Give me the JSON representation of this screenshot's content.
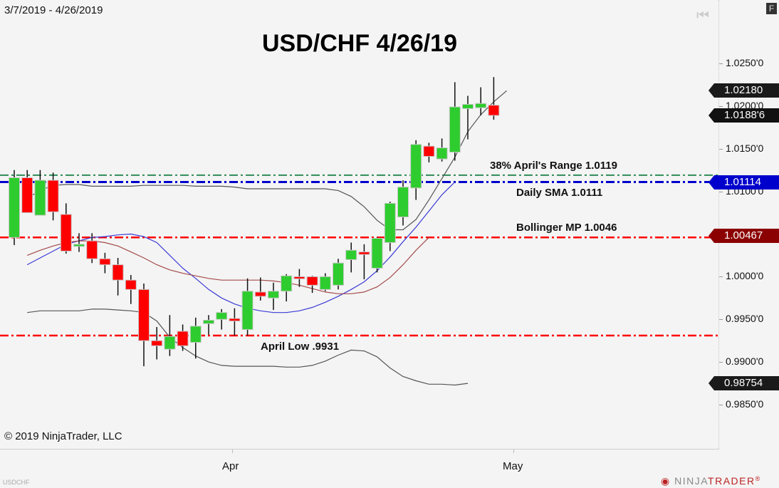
{
  "header": {
    "date_range": "3/7/2019 - 4/26/2019",
    "title": "USD/CHF 4/26/19",
    "f_button": "F"
  },
  "footer": {
    "copyright": "© 2019 NinjaTrader, LLC",
    "symbol": "USDCHF",
    "logo_prefix": "NINJA",
    "logo_brand": "TRADER",
    "logo_mark": "®"
  },
  "colors": {
    "up": "#2ecc2e",
    "down": "#ff0000",
    "fib_line": "#2e8b57",
    "sma_line": "#0000cc",
    "bollinger_mid_line": "#ff0000",
    "april_low_line": "#ff0000",
    "bollinger_band": "#555555",
    "fast_ma": "#3b3bd6",
    "slow_ma": "#a54b4b",
    "tag_dark": "#1a1a1a",
    "tag_blue": "#0000cc",
    "tag_red": "#8b0000"
  },
  "chart_data": {
    "type": "candlestick",
    "title": "USD/CHF 4/26/19",
    "xlabel": "",
    "ylabel": "",
    "x_tick_labels": [
      "Apr",
      "May"
    ],
    "y_tick_labels": [
      "1.0250'0",
      "1.0200'0",
      "1.0150'0",
      "1.0100'0",
      "1.0000'0",
      "0.9950'0",
      "0.9900'0",
      "0.9850'0"
    ],
    "ylim": [
      0.9825,
      1.0275
    ],
    "grid": false,
    "candles": [
      {
        "o": 1.0046,
        "h": 1.0125,
        "l": 1.0037,
        "c": 1.0116
      },
      {
        "o": 1.0116,
        "h": 1.0125,
        "l": 1.0088,
        "c": 1.0075
      },
      {
        "o": 1.0072,
        "h": 1.0125,
        "l": 1.0072,
        "c": 1.0113
      },
      {
        "o": 1.0113,
        "h": 1.0122,
        "l": 1.0066,
        "c": 1.0076
      },
      {
        "o": 1.0073,
        "h": 1.0086,
        "l": 1.0027,
        "c": 1.003
      },
      {
        "o": 1.0036,
        "h": 1.0051,
        "l": 1.0029,
        "c": 1.0038
      },
      {
        "o": 1.0042,
        "h": 1.0051,
        "l": 1.0016,
        "c": 1.0021
      },
      {
        "o": 1.0021,
        "h": 1.0028,
        "l": 1.0004,
        "c": 1.0014
      },
      {
        "o": 1.0014,
        "h": 1.0022,
        "l": 0.9978,
        "c": 0.9996
      },
      {
        "o": 0.9996,
        "h": 1.0002,
        "l": 0.9968,
        "c": 0.9985
      },
      {
        "o": 0.9985,
        "h": 0.9992,
        "l": 0.9895,
        "c": 0.9925
      },
      {
        "o": 0.9925,
        "h": 0.9941,
        "l": 0.9903,
        "c": 0.9919
      },
      {
        "o": 0.9915,
        "h": 0.9955,
        "l": 0.9907,
        "c": 0.993
      },
      {
        "o": 0.9936,
        "h": 0.9944,
        "l": 0.9913,
        "c": 0.9919
      },
      {
        "o": 0.9923,
        "h": 0.9952,
        "l": 0.9904,
        "c": 0.9942
      },
      {
        "o": 0.9945,
        "h": 0.9955,
        "l": 0.9932,
        "c": 0.9949
      },
      {
        "o": 0.995,
        "h": 0.9962,
        "l": 0.9938,
        "c": 0.9958
      },
      {
        "o": 0.9951,
        "h": 0.9963,
        "l": 0.9931,
        "c": 0.9948
      },
      {
        "o": 0.9938,
        "h": 0.9998,
        "l": 0.9931,
        "c": 0.9983
      },
      {
        "o": 0.9982,
        "h": 0.9999,
        "l": 0.9972,
        "c": 0.9977
      },
      {
        "o": 0.9975,
        "h": 0.9993,
        "l": 0.9961,
        "c": 0.9983
      },
      {
        "o": 0.9983,
        "h": 1.0003,
        "l": 0.9971,
        "c": 1.0001
      },
      {
        "o": 1.0,
        "h": 1.0009,
        "l": 0.9988,
        "c": 0.9998
      },
      {
        "o": 1.0,
        "h": 1.0001,
        "l": 0.9981,
        "c": 0.999
      },
      {
        "o": 0.9985,
        "h": 1.0004,
        "l": 0.9983,
        "c": 1.0
      },
      {
        "o": 0.999,
        "h": 1.0021,
        "l": 0.9985,
        "c": 1.0016
      },
      {
        "o": 1.002,
        "h": 1.004,
        "l": 1.0005,
        "c": 1.0031
      },
      {
        "o": 1.0029,
        "h": 1.0038,
        "l": 0.9997,
        "c": 1.0026
      },
      {
        "o": 1.001,
        "h": 1.0046,
        "l": 1.0005,
        "c": 1.0045
      },
      {
        "o": 1.004,
        "h": 1.0088,
        "l": 1.003,
        "c": 1.0086
      },
      {
        "o": 1.007,
        "h": 1.0113,
        "l": 1.006,
        "c": 1.0105
      },
      {
        "o": 1.0104,
        "h": 1.016,
        "l": 1.009,
        "c": 1.0155
      },
      {
        "o": 1.0153,
        "h": 1.0157,
        "l": 1.0134,
        "c": 1.0141
      },
      {
        "o": 1.0138,
        "h": 1.0162,
        "l": 1.0135,
        "c": 1.0151
      },
      {
        "o": 1.0146,
        "h": 1.0228,
        "l": 1.0136,
        "c": 1.0199
      },
      {
        "o": 1.0197,
        "h": 1.0212,
        "l": 1.0161,
        "c": 1.0202
      },
      {
        "o": 1.0198,
        "h": 1.0222,
        "l": 1.0189,
        "c": 1.0203
      },
      {
        "o": 1.0201,
        "h": 1.0234,
        "l": 1.0184,
        "c": 1.0189
      }
    ],
    "horizontal_levels": [
      {
        "label": "38% April's Range 1.0119",
        "value": 1.0119,
        "color": "#2e8b57",
        "style": "dash-dot"
      },
      {
        "label": "Daily SMA 1.0111",
        "value": 1.0111,
        "color": "#0000cc",
        "style": "dash-dot"
      },
      {
        "label": "Bollinger MP 1.0046",
        "value": 1.0046,
        "color": "#ff0000",
        "style": "dash-dot"
      },
      {
        "label": "April Low .9931",
        "value": 0.9931,
        "color": "#ff0000",
        "style": "dash-dot"
      }
    ],
    "price_tags": [
      {
        "value": "1.02180",
        "color": "#1a1a1a"
      },
      {
        "value": "1.0188'6",
        "color": "#111111"
      },
      {
        "value": "1.01114",
        "color": "#0000cc"
      },
      {
        "value": "1.00467",
        "color": "#8b0000"
      },
      {
        "value": "0.98754",
        "color": "#1a1a1a"
      }
    ],
    "indicators": {
      "bollinger_upper": [
        1.0092,
        1.0101,
        1.0107,
        1.0108,
        1.0108,
        1.0106,
        1.0106,
        1.0106,
        1.0106,
        1.0107,
        1.0107,
        1.0107,
        1.0107,
        1.0106,
        1.0106,
        1.0106,
        1.0105,
        1.0103,
        1.0103,
        1.0103,
        1.0103,
        1.0103,
        1.0103,
        1.0103,
        1.0101,
        1.0094,
        1.0082,
        1.0066,
        1.0055,
        1.0055,
        1.0067,
        1.009,
        1.0115,
        1.014,
        1.017,
        1.019,
        1.0205,
        1.0218
      ],
      "bollinger_lower": [
        0.9958,
        0.996,
        0.996,
        0.996,
        0.996,
        0.9962,
        0.9962,
        0.9961,
        0.996,
        0.9958,
        0.9948,
        0.9929,
        0.9917,
        0.9907,
        0.99,
        0.9896,
        0.9895,
        0.9895,
        0.9895,
        0.9895,
        0.9894,
        0.9894,
        0.9896,
        0.9901,
        0.9908,
        0.9914,
        0.9913,
        0.9906,
        0.9893,
        0.9883,
        0.9878,
        0.9874,
        0.9874,
        0.9873,
        0.9875
      ],
      "fast_ma": [
        1.0014,
        1.0022,
        1.003,
        1.0038,
        1.0042,
        1.0046,
        1.0047,
        1.0049,
        1.005,
        1.0047,
        1.004,
        1.0025,
        1.001,
        0.9998,
        0.9985,
        0.9975,
        0.9968,
        0.9963,
        0.996,
        0.9958,
        0.9958,
        0.996,
        0.9964,
        0.997,
        0.9977,
        0.9985,
        0.9994,
        1.0007,
        1.0023,
        1.0041,
        1.0058,
        1.0077,
        1.0096,
        1.0111
      ],
      "slow_ma": [
        1.0025,
        1.0031,
        1.0036,
        1.004,
        1.0042,
        1.0042,
        1.004,
        1.0036,
        1.0029,
        1.0022,
        1.0014,
        1.0008,
        1.0004,
        1.0001,
        0.9998,
        0.9996,
        0.9996,
        0.9996,
        0.9996,
        0.9995,
        0.9993,
        0.999,
        0.9986,
        0.9982,
        0.998,
        0.998,
        0.9982,
        0.9988,
        0.9999,
        1.0014,
        1.0031,
        1.0046
      ]
    }
  }
}
